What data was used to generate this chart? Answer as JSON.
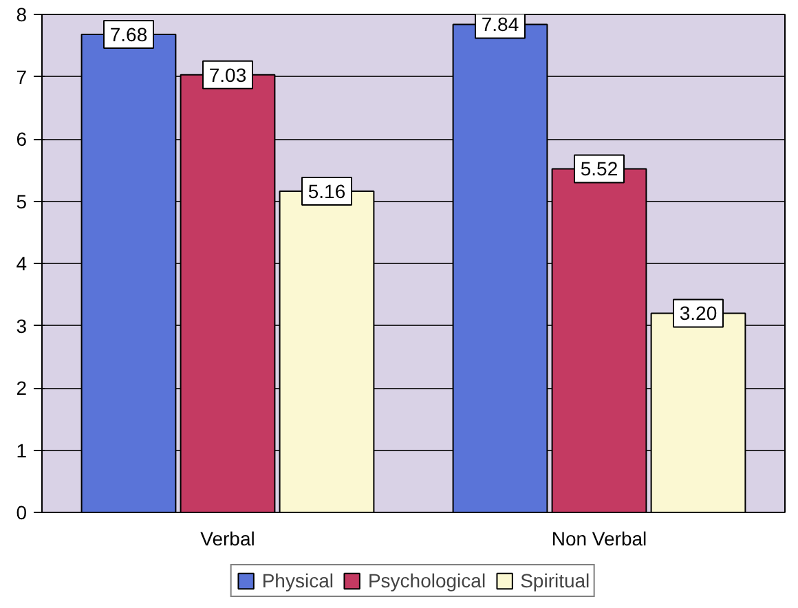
{
  "chart_data": {
    "type": "bar",
    "categories": [
      "Verbal",
      "Non Verbal"
    ],
    "series": [
      {
        "name": "Physical",
        "color": "#5a74d8",
        "values": [
          7.68,
          7.84
        ],
        "value_labels": [
          "7.68",
          "7.84"
        ]
      },
      {
        "name": "Psychological",
        "color": "#c43a62",
        "values": [
          7.03,
          5.52
        ],
        "value_labels": [
          "7.03",
          "5.52"
        ]
      },
      {
        "name": "Spiritual",
        "color": "#fbf8d2",
        "values": [
          5.16,
          3.2
        ],
        "value_labels": [
          "5.16",
          "3.20"
        ]
      }
    ],
    "ylim": [
      0,
      8
    ],
    "yticks": [
      0,
      1,
      2,
      3,
      4,
      5,
      6,
      7,
      8
    ],
    "grid": "y",
    "legend": "bottom"
  }
}
